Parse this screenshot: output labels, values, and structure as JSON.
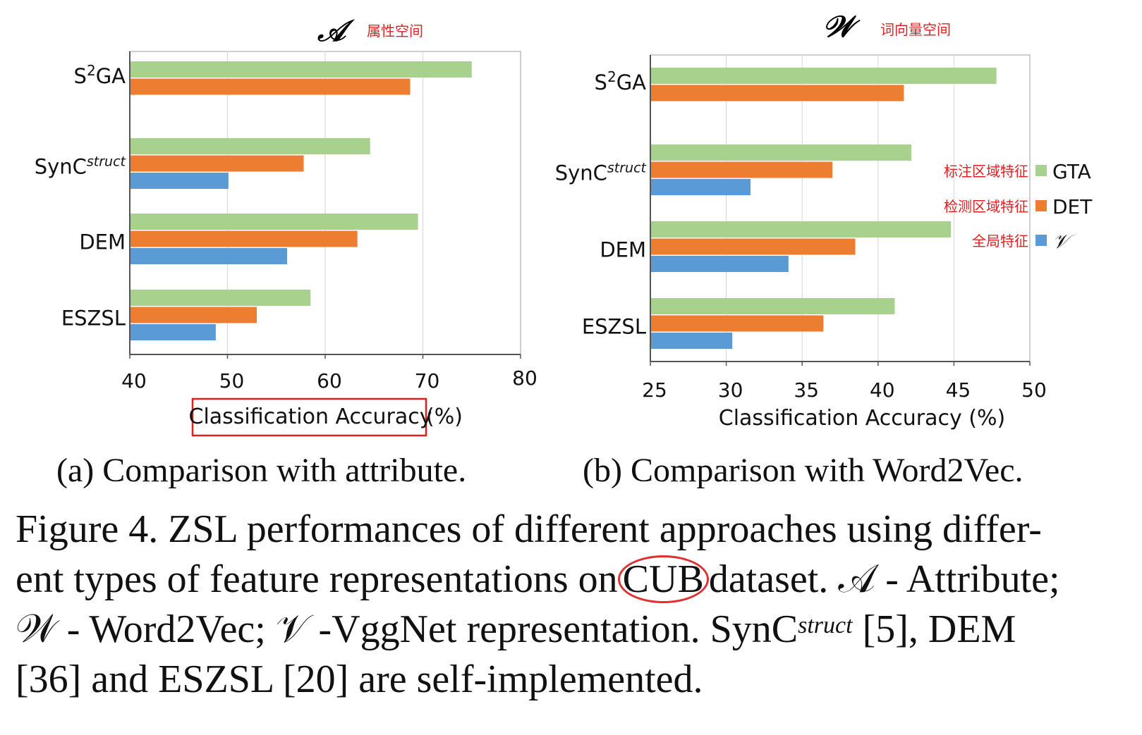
{
  "chart_data": [
    {
      "type": "bar",
      "title": "𝒜",
      "annotation": "属性空间",
      "xlabel": "Classification Accuracy",
      "xlabel_unit": "(%)",
      "xlim": [
        40,
        80
      ],
      "xticks": [
        40,
        50,
        60,
        70,
        80
      ],
      "categories": [
        "S2GA",
        "SyncStruct",
        "DEM",
        "ESZSL"
      ],
      "category_labels": [
        {
          "main": "S",
          "sup": "2",
          "rest": "GA"
        },
        {
          "main": "SynC",
          "sup": "struct",
          "rest": ""
        },
        {
          "main": "DEM",
          "sup": "",
          "rest": ""
        },
        {
          "main": "ESZSL",
          "sup": "",
          "rest": ""
        }
      ],
      "series": [
        {
          "name": "GTA",
          "color": "#a9d18e",
          "values": [
            75.0,
            64.6,
            69.5,
            58.5
          ]
        },
        {
          "name": "DET",
          "color": "#ed7d31",
          "values": [
            68.7,
            57.8,
            63.3,
            53.0
          ]
        },
        {
          "name": "V",
          "color": "#5b9bd5",
          "values": [
            null,
            50.1,
            56.1,
            48.8
          ]
        }
      ],
      "grid": "vertical"
    },
    {
      "type": "bar",
      "title": "𝒲",
      "annotation": "词向量空间",
      "xlabel": "Classification Accuracy (%)",
      "xlim": [
        25,
        50
      ],
      "xticks": [
        25,
        30,
        35,
        40,
        45,
        50
      ],
      "categories": [
        "S2GA",
        "SyncStruct",
        "DEM",
        "ESZSL"
      ],
      "category_labels": [
        {
          "main": "S",
          "sup": "2",
          "rest": "GA"
        },
        {
          "main": "SynC",
          "sup": "struct",
          "rest": ""
        },
        {
          "main": "DEM",
          "sup": "",
          "rest": ""
        },
        {
          "main": "ESZSL",
          "sup": "",
          "rest": ""
        }
      ],
      "series": [
        {
          "name": "GTA",
          "color": "#a9d18e",
          "values": [
            47.8,
            42.2,
            44.8,
            41.1
          ]
        },
        {
          "name": "DET",
          "color": "#ed7d31",
          "values": [
            41.7,
            37.0,
            38.5,
            36.4
          ]
        },
        {
          "name": "V",
          "color": "#5b9bd5",
          "values": [
            null,
            31.6,
            34.1,
            30.4
          ]
        }
      ],
      "legend": {
        "placement": "right",
        "entries": [
          {
            "zh": "标注区域特征",
            "label": "GTA",
            "color": "#a9d18e"
          },
          {
            "zh": "检测区域特征",
            "label": "DET",
            "color": "#ed7d31"
          },
          {
            "zh": "全局特征",
            "label": "𝒱",
            "color": "#5b9bd5"
          }
        ]
      },
      "grid": "vertical"
    }
  ],
  "subcaptions": {
    "a": "(a)  Comparison with attribute.",
    "b": "(b)  Comparison with Word2Vec."
  },
  "caption": {
    "line1": "Figure 4. ZSL performances of different approaches using differ-",
    "line2_pre": "ent types of feature representations on",
    "line2_cub": "CUB",
    "line2_post": "dataset. 𝒜 - Attribute;",
    "line3_pre": "𝒲 - Word2Vec; 𝒱 -VggNet representation. SynC",
    "line3_sup": "struct",
    "line3_post": " [5], DEM",
    "line4": "[36] and ESZSL [20] are self-implemented."
  },
  "colors": {
    "annotation_red": "#e02020",
    "highlight_box": "#e02020"
  }
}
